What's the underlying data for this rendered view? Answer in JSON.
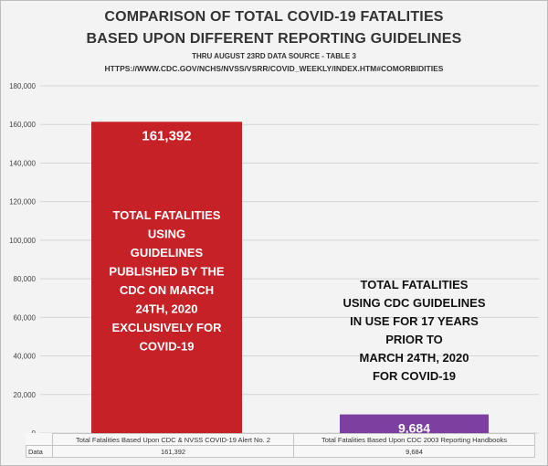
{
  "chart_data": {
    "type": "bar",
    "title": "COMPARISON OF TOTAL COVID-19 FATALITIES",
    "title_line2": "BASED UPON DIFFERENT REPORTING GUIDELINES",
    "subtitle": "THRU AUGUST 23RD DATA SOURCE - TABLE 3",
    "source": "HTTPS://WWW.CDC.GOV/NCHS/NVSS/VSRR/COVID_WEEKLY/INDEX.HTM#COMORBIDITIES",
    "categories": [
      "Total Fatalities Based Upon CDC & NVSS COVID-19 Alert No. 2",
      "Total Fatalities Based Upon CDC 2003 Reporting Handbooks"
    ],
    "series": [
      {
        "name": "Data",
        "values": [
          161392,
          9684
        ]
      }
    ],
    "value_labels": [
      "161,392",
      "9,684"
    ],
    "bar_colors": [
      "#c62127",
      "#7d3fa0"
    ],
    "ylim": [
      0,
      180000
    ],
    "yticks": [
      "0",
      "20,000",
      "40,000",
      "60,000",
      "80,000",
      "100,000",
      "120,000",
      "140,000",
      "160,000",
      "180,000"
    ],
    "grid": true,
    "annotations": [
      [
        "TOTAL FATALITIES",
        "USING",
        "GUIDELINES",
        "PUBLISHED BY THE",
        "CDC ON MARCH",
        "24TH, 2020",
        "EXCLUSIVELY FOR",
        "COVID-19"
      ],
      [
        "TOTAL FATALITIES",
        "USING CDC GUIDELINES",
        "IN USE FOR 17 YEARS",
        "PRIOR TO",
        "MARCH 24TH, 2020",
        "FOR COVID-19"
      ]
    ],
    "data_table": {
      "row_label": "Data",
      "values": [
        "161,392",
        "9,684"
      ]
    }
  }
}
